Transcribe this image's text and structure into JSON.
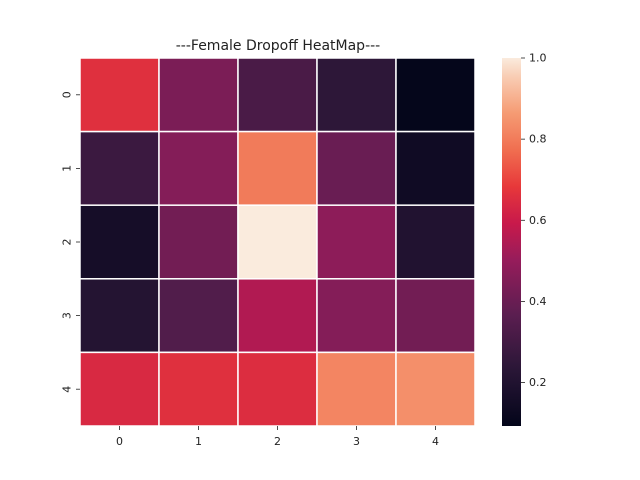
{
  "chart_data": {
    "type": "heatmap",
    "title": "---Female Dropoff HeatMap---",
    "xlabel": "",
    "ylabel": "",
    "x_categories": [
      "0",
      "1",
      "2",
      "3",
      "4"
    ],
    "y_categories": [
      "0",
      "1",
      "2",
      "3",
      "4"
    ],
    "values": [
      [
        0.66,
        0.44,
        0.32,
        0.24,
        0.1
      ],
      [
        0.28,
        0.46,
        0.8,
        0.4,
        0.14
      ],
      [
        0.16,
        0.42,
        1.0,
        0.48,
        0.2
      ],
      [
        0.21,
        0.34,
        0.55,
        0.46,
        0.42
      ],
      [
        0.64,
        0.66,
        0.65,
        0.82,
        0.84
      ]
    ],
    "colorbar": {
      "range": [
        0.093,
        1.0
      ],
      "ticks": [
        "0.2",
        "0.4",
        "0.6",
        "0.8",
        "1.0"
      ],
      "colormap": "rocket"
    },
    "grid": false,
    "cell_border_color": "#ffffff"
  }
}
